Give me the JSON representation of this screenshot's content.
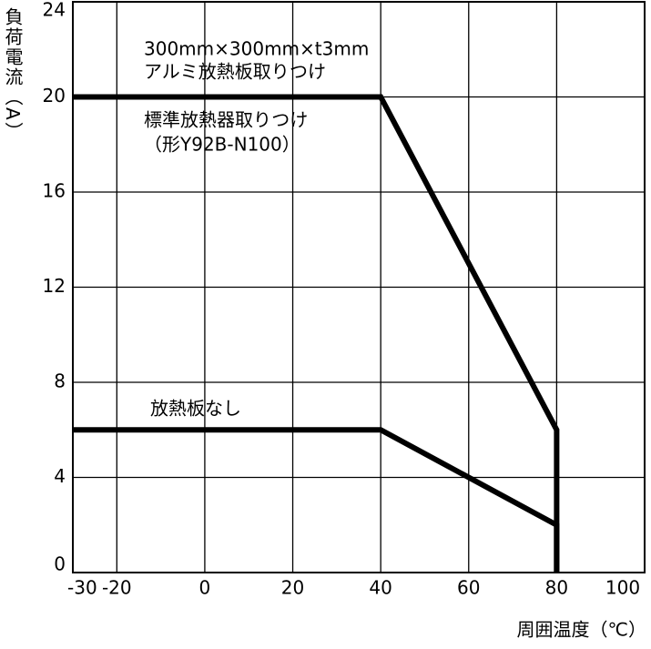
{
  "chart_data": {
    "type": "line",
    "x_label": "周囲温度（℃）",
    "y_label": "負荷電流（A）",
    "x": [
      -30,
      40,
      80,
      80
    ],
    "series": [
      {
        "color": "#000000",
        "values": [
          20,
          20,
          6,
          0
        ]
      },
      {
        "color": "#000000",
        "values": [
          6,
          6,
          2,
          0
        ]
      }
    ],
    "annotations": [
      "300mm×300mm×t3mm",
      "アルミ放熱板取りつけ",
      "標準放熱器取りつけ",
      "（形Y92B-N100）",
      "放熱板なし"
    ],
    "xlim": [
      -30,
      100
    ],
    "xticks": [
      -30,
      -20,
      0,
      20,
      40,
      60,
      80,
      100
    ],
    "ylim": [
      0,
      24
    ],
    "yticks": [
      0,
      4,
      8,
      12,
      16,
      20,
      24
    ],
    "grid": true
  }
}
